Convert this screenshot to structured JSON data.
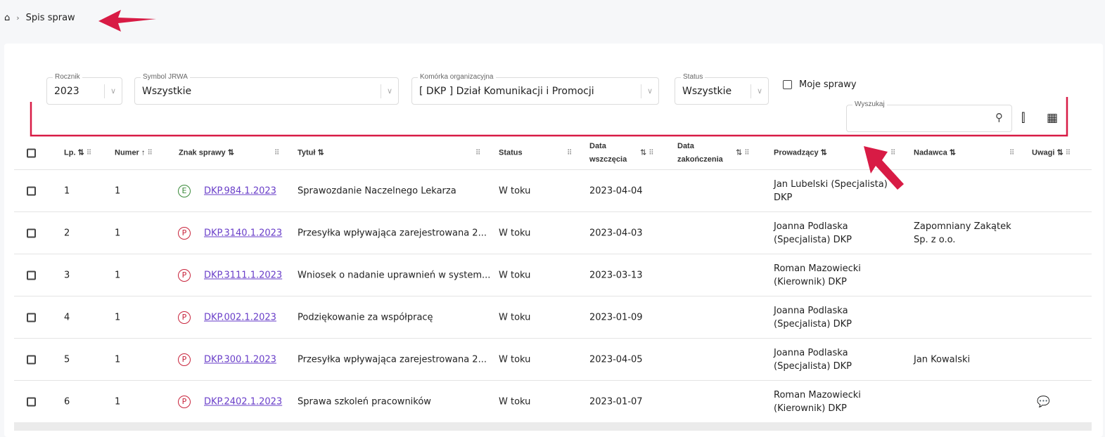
{
  "breadcrumb": {
    "current": "Spis spraw"
  },
  "filters": {
    "rocznik": {
      "label": "Rocznik",
      "value": "2023"
    },
    "jrwa": {
      "label": "Symbol JRWA",
      "value": "Wszystkie"
    },
    "komorka": {
      "label": "Komórka organizacyjna",
      "value": "[ DKP ] Dział Komunikacji i Promocji"
    },
    "status": {
      "label": "Status",
      "value": "Wszystkie"
    },
    "moje": "Moje sprawy",
    "search": {
      "label": "Wyszukaj",
      "value": ""
    }
  },
  "columns": [
    "Lp.",
    "Numer",
    "Znak sprawy",
    "Tytuł",
    "Status",
    "Data wszczęcia",
    "Data zakończenia",
    "Prowadzący",
    "Nadawca",
    "Uwagi"
  ],
  "rows": [
    {
      "lp": "1",
      "numer": "1",
      "type": "E",
      "znak": "DKP.984.1.2023",
      "tytul": "Sprawozdanie Naczelnego Lekarza",
      "status": "W toku",
      "data": "2023-04-04",
      "prow1": "Jan Lubelski (Specjalista)",
      "prow2": "DKP",
      "nad1": "",
      "nad2": "",
      "uwagi": false
    },
    {
      "lp": "2",
      "numer": "1",
      "type": "P",
      "znak": "DKP.3140.1.2023",
      "tytul": "Przesyłka wpływająca zarejestrowana 2...",
      "status": "W toku",
      "data": "2023-04-03",
      "prow1": "Joanna Podlaska",
      "prow2": "(Specjalista) DKP",
      "nad1": "Zapomniany Zakątek",
      "nad2": "Sp. z o.o.",
      "uwagi": false
    },
    {
      "lp": "3",
      "numer": "1",
      "type": "P",
      "znak": "DKP.3111.1.2023",
      "tytul": "Wniosek o nadanie uprawnień w system...",
      "status": "W toku",
      "data": "2023-03-13",
      "prow1": "Roman Mazowiecki",
      "prow2": "(Kierownik) DKP",
      "nad1": "",
      "nad2": "",
      "uwagi": false
    },
    {
      "lp": "4",
      "numer": "1",
      "type": "P",
      "znak": "DKP.002.1.2023",
      "tytul": "Podziękowanie za współpracę",
      "status": "W toku",
      "data": "2023-01-09",
      "prow1": "Joanna Podlaska",
      "prow2": "(Specjalista) DKP",
      "nad1": "",
      "nad2": "",
      "uwagi": false
    },
    {
      "lp": "5",
      "numer": "1",
      "type": "P",
      "znak": "DKP.300.1.2023",
      "tytul": "Przesyłka wpływająca zarejestrowana 2...",
      "status": "W toku",
      "data": "2023-04-05",
      "prow1": "Joanna Podlaska",
      "prow2": "(Specjalista) DKP",
      "nad1": "Jan Kowalski",
      "nad2": "",
      "uwagi": false
    },
    {
      "lp": "6",
      "numer": "1",
      "type": "P",
      "znak": "DKP.2402.1.2023",
      "tytul": "Sprawa szkoleń pracowników",
      "status": "W toku",
      "data": "2023-01-07",
      "prow1": "Roman Mazowiecki",
      "prow2": "(Kierownik) DKP",
      "nad1": "",
      "nad2": "",
      "uwagi": true
    }
  ],
  "colors": {
    "link": "#6a3fc9",
    "badgeE": "#3a8a3a",
    "badgeP": "#c8243c",
    "annotation": "#d81b45"
  }
}
